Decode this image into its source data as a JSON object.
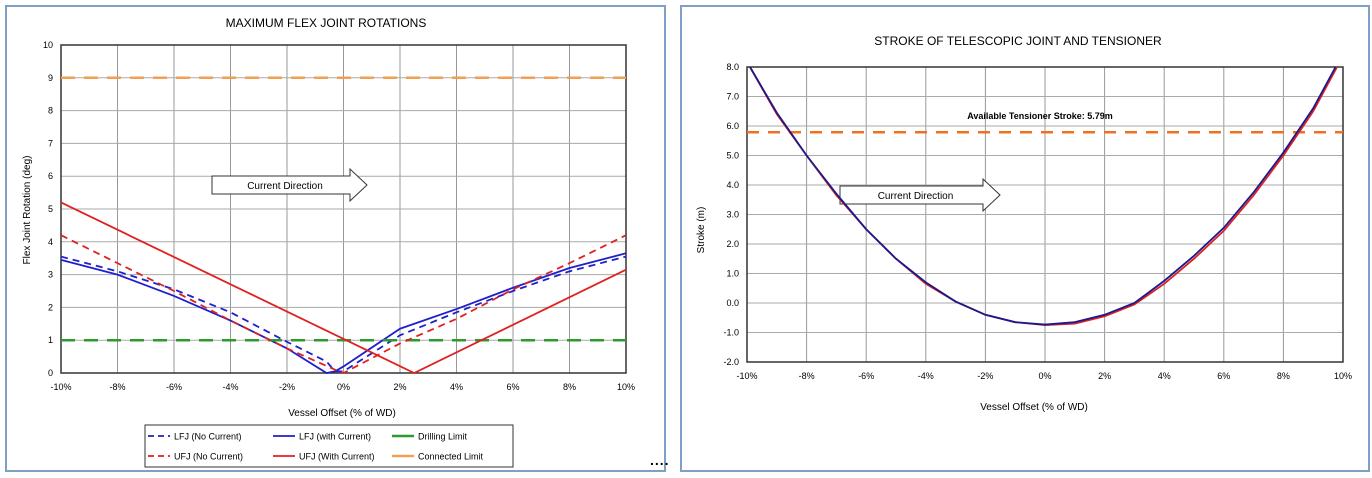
{
  "chart_data": [
    {
      "type": "line",
      "title": "MAXIMUM FLEX JOINT ROTATIONS",
      "xlabel": "Vessel Offset (% of WD)",
      "ylabel": "Flex Joint Rotation (deg)",
      "xlim": [
        -10,
        10
      ],
      "ylim": [
        0,
        10
      ],
      "x_ticks": [
        "-10%",
        "-8%",
        "-6%",
        "-4%",
        "-2%",
        "0%",
        "2%",
        "4%",
        "6%",
        "8%",
        "10%"
      ],
      "y_ticks": [
        "0",
        "1",
        "2",
        "3",
        "4",
        "5",
        "6",
        "7",
        "8",
        "9",
        "10"
      ],
      "grid": true,
      "legend": "bottom",
      "annotation": "Current Direction",
      "series": [
        {
          "name": "LFJ (No Current)",
          "color": "#1f1fcc",
          "dash": true,
          "x": [
            -10,
            -8,
            -6,
            -4,
            -2,
            -0.6,
            -0.3,
            0,
            2,
            4,
            6,
            8,
            10
          ],
          "y": [
            3.55,
            3.1,
            2.55,
            1.85,
            0.95,
            0.35,
            0.05,
            0.05,
            1.15,
            1.85,
            2.5,
            3.1,
            3.55
          ]
        },
        {
          "name": "LFJ (with Current)",
          "color": "#1f1fcc",
          "dash": false,
          "x": [
            -10,
            -8,
            -6,
            -4,
            -2,
            -0.6,
            -0.3,
            0,
            2,
            4,
            6,
            8,
            10
          ],
          "y": [
            3.45,
            3.0,
            2.35,
            1.6,
            0.75,
            0.0,
            0.05,
            0.2,
            1.35,
            1.95,
            2.6,
            3.2,
            3.65
          ]
        },
        {
          "name": "Drilling Limit",
          "color": "#2e9a2e",
          "dash": true,
          "x": [
            -10,
            10
          ],
          "y": [
            1,
            1
          ]
        },
        {
          "name": "UFJ (No Current)",
          "color": "#e02020",
          "dash": true,
          "x": [
            -10,
            -8,
            -6,
            -4,
            -2,
            -0.3,
            0,
            2,
            4,
            6,
            8,
            10
          ],
          "y": [
            4.2,
            3.35,
            2.5,
            1.6,
            0.75,
            0.1,
            0.0,
            0.9,
            1.65,
            2.55,
            3.35,
            4.2
          ]
        },
        {
          "name": "UFJ (With Current)",
          "color": "#e02020",
          "dash": false,
          "x": [
            -10,
            2.5,
            10
          ],
          "y": [
            5.2,
            0.0,
            3.15
          ]
        },
        {
          "name": "Connected Limit",
          "color": "#f0a050",
          "dash": true,
          "x": [
            -10,
            10
          ],
          "y": [
            9,
            9
          ]
        }
      ]
    },
    {
      "type": "line",
      "title": "STROKE OF TELESCOPIC JOINT AND TENSIONER",
      "xlabel": "Vessel Offset (% of WD)",
      "ylabel": "Stroke (m)",
      "xlim": [
        -10,
        10
      ],
      "ylim": [
        -2,
        8
      ],
      "x_ticks": [
        "-10%",
        "-8%",
        "-6%",
        "-4%",
        "-2%",
        "0%",
        "2%",
        "4%",
        "6%",
        "8%",
        "10%"
      ],
      "y_ticks": [
        "-2.0",
        "-1.0",
        "0.0",
        "1.0",
        "2.0",
        "3.0",
        "4.0",
        "5.0",
        "6.0",
        "7.0",
        "8.0"
      ],
      "grid": true,
      "annotation": "Current Direction",
      "limit_label": "Available Tensioner Stroke: 5.79m",
      "limit_value": 5.79,
      "limit_color": "#f07020",
      "series": [
        {
          "color": "#e02020",
          "x": [
            -9.9,
            -9,
            -8,
            -7,
            -6,
            -5,
            -4,
            -3,
            -2,
            -1,
            0,
            1,
            2,
            3,
            4,
            5,
            6,
            7,
            8,
            9,
            9.8
          ],
          "y": [
            8.0,
            6.4,
            5.0,
            3.65,
            2.5,
            1.5,
            0.65,
            0.05,
            -0.4,
            -0.65,
            -0.75,
            -0.7,
            -0.45,
            -0.05,
            0.65,
            1.5,
            2.45,
            3.65,
            5.0,
            6.5,
            8.0
          ]
        },
        {
          "color": "#1a1a8c",
          "x": [
            -9.9,
            -9,
            -8,
            -7,
            -6,
            -5,
            -4,
            -3,
            -2,
            -1,
            0,
            1,
            2,
            3,
            4,
            5,
            6,
            7,
            8,
            9,
            9.75
          ],
          "y": [
            8.0,
            6.45,
            5.0,
            3.7,
            2.5,
            1.5,
            0.7,
            0.05,
            -0.4,
            -0.65,
            -0.73,
            -0.65,
            -0.4,
            0.0,
            0.75,
            1.6,
            2.55,
            3.75,
            5.1,
            6.6,
            8.0
          ]
        }
      ]
    }
  ],
  "separator": "...."
}
